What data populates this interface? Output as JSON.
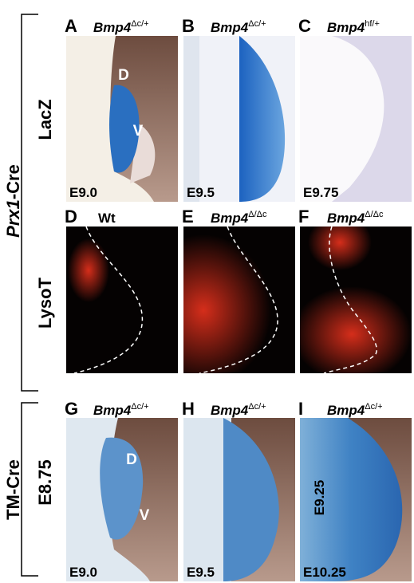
{
  "left_labels": {
    "group1": {
      "italic": "Prx1",
      "rest": "-Cre"
    },
    "group2": "TM-Cre",
    "rows": [
      "LacZ",
      "LysoT",
      "E8.75"
    ]
  },
  "panels": [
    {
      "letter": "A",
      "genotype": {
        "gene": "Bmp4",
        "sup": "Δc/+"
      },
      "stage": "E9.0",
      "annotations": [
        "D",
        "V"
      ]
    },
    {
      "letter": "B",
      "genotype": {
        "gene": "Bmp4",
        "sup": "Δc/+"
      },
      "stage": "E9.5"
    },
    {
      "letter": "C",
      "genotype": {
        "gene": "Bmp4",
        "sup": "hf/+"
      },
      "stage": "E9.75"
    },
    {
      "letter": "D",
      "genotype": {
        "plain": "Wt"
      }
    },
    {
      "letter": "E",
      "genotype": {
        "gene": "Bmp4",
        "sup": "Δ/Δc"
      }
    },
    {
      "letter": "F",
      "genotype": {
        "gene": "Bmp4",
        "sup": "Δ/Δc"
      }
    },
    {
      "letter": "G",
      "genotype": {
        "gene": "Bmp4",
        "sup": "Δc/+"
      },
      "stage": "E9.0",
      "annotations": [
        "D",
        "V"
      ]
    },
    {
      "letter": "H",
      "genotype": {
        "gene": "Bmp4",
        "sup": "Δc/+"
      },
      "stage": "E9.5"
    },
    {
      "letter": "I",
      "genotype": {
        "gene": "Bmp4",
        "sup": "Δc/+"
      },
      "stage": "E10.25",
      "annotations": [
        "E9.25"
      ]
    }
  ]
}
